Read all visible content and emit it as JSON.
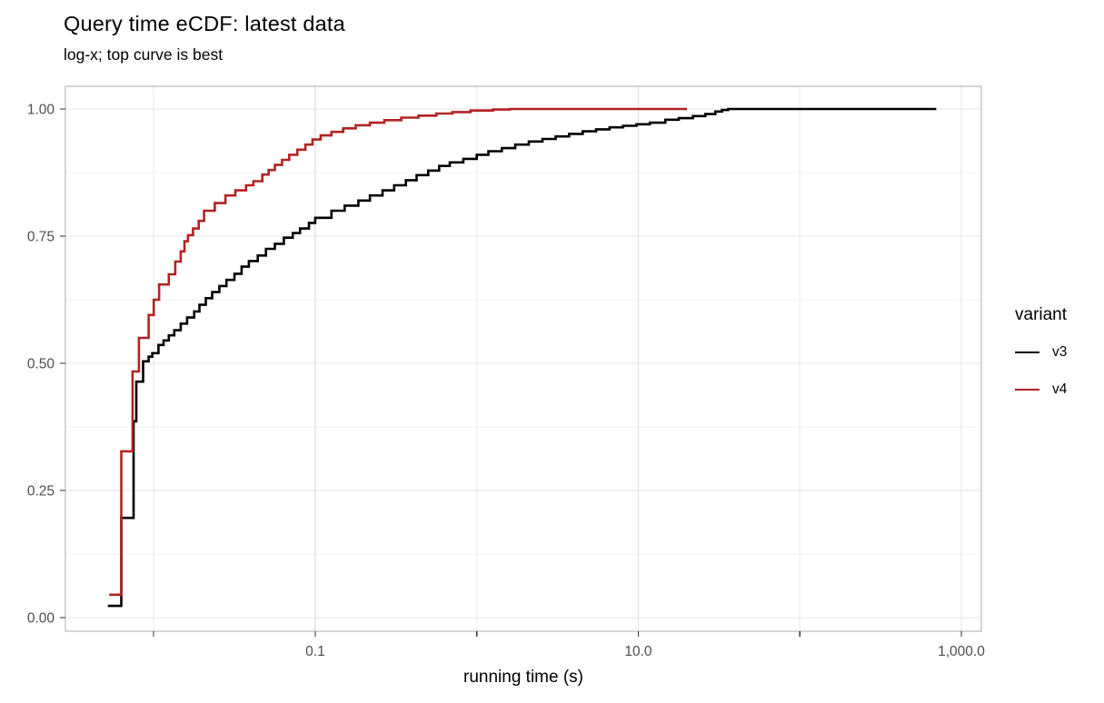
{
  "title": "Query time eCDF: latest data",
  "subtitle": "log-x; top curve is best",
  "chart_data": {
    "type": "line",
    "subtype": "ecdf-step",
    "title": "Query time eCDF: latest data",
    "subtitle": "log-x; top curve is best",
    "xlabel": "running time (s)",
    "ylabel": "",
    "x_scale": "log10",
    "xlim": [
      0.00284,
      1330
    ],
    "ylim": [
      0,
      1
    ],
    "grid": "on",
    "x_major_ticks": [
      {
        "value": 0.1,
        "label": "0.1"
      },
      {
        "value": 10,
        "label": "10.0"
      },
      {
        "value": 1000,
        "label": "1,000.0"
      }
    ],
    "x_minor_ticks": [
      0.01,
      1,
      100
    ],
    "y_major_ticks": [
      {
        "value": 0.0,
        "label": "0.00"
      },
      {
        "value": 0.25,
        "label": "0.25"
      },
      {
        "value": 0.5,
        "label": "0.50"
      },
      {
        "value": 0.75,
        "label": "0.75"
      },
      {
        "value": 1.0,
        "label": "1.00"
      }
    ],
    "y_minor_ticks": [
      0.125,
      0.375,
      0.625,
      0.875
    ],
    "legend": {
      "title": "variant",
      "position": "right"
    },
    "colors": {
      "grid_major": "#e4e4e4",
      "grid_minor": "#f1f1f1",
      "panel_border": "#adadad",
      "tick_mark": "#333333",
      "tick_label": "#4d4d4d"
    },
    "series": [
      {
        "name": "v3",
        "color": "#000000",
        "points": [
          [
            0.0052,
            0.023
          ],
          [
            0.0063,
            0.196
          ],
          [
            0.0075,
            0.386
          ],
          [
            0.0078,
            0.464
          ],
          [
            0.0086,
            0.504
          ],
          [
            0.0093,
            0.513
          ],
          [
            0.0098,
            0.52
          ],
          [
            0.0107,
            0.536
          ],
          [
            0.0115,
            0.545
          ],
          [
            0.0124,
            0.555
          ],
          [
            0.0134,
            0.565
          ],
          [
            0.0147,
            0.578
          ],
          [
            0.0161,
            0.59
          ],
          [
            0.0178,
            0.602
          ],
          [
            0.0192,
            0.615
          ],
          [
            0.021,
            0.628
          ],
          [
            0.023,
            0.64
          ],
          [
            0.0255,
            0.652
          ],
          [
            0.0282,
            0.664
          ],
          [
            0.0316,
            0.676
          ],
          [
            0.035,
            0.69
          ],
          [
            0.0388,
            0.701
          ],
          [
            0.0441,
            0.712
          ],
          [
            0.0495,
            0.725
          ],
          [
            0.0562,
            0.735
          ],
          [
            0.0639,
            0.747
          ],
          [
            0.0726,
            0.756
          ],
          [
            0.0805,
            0.765
          ],
          [
            0.0914,
            0.776
          ],
          [
            0.1,
            0.786
          ],
          [
            0.126,
            0.8
          ],
          [
            0.152,
            0.81
          ],
          [
            0.185,
            0.82
          ],
          [
            0.218,
            0.83
          ],
          [
            0.261,
            0.84
          ],
          [
            0.308,
            0.85
          ],
          [
            0.364,
            0.86
          ],
          [
            0.424,
            0.87
          ],
          [
            0.501,
            0.879
          ],
          [
            0.585,
            0.888
          ],
          [
            0.681,
            0.895
          ],
          [
            0.826,
            0.902
          ],
          [
            1.0,
            0.91
          ],
          [
            1.18,
            0.917
          ],
          [
            1.43,
            0.923
          ],
          [
            1.73,
            0.93
          ],
          [
            2.1,
            0.936
          ],
          [
            2.55,
            0.941
          ],
          [
            3.08,
            0.946
          ],
          [
            3.73,
            0.951
          ],
          [
            4.53,
            0.956
          ],
          [
            5.48,
            0.96
          ],
          [
            6.64,
            0.964
          ],
          [
            8.05,
            0.967
          ],
          [
            9.75,
            0.97
          ],
          [
            11.8,
            0.973
          ],
          [
            14.7,
            0.979
          ],
          [
            17.8,
            0.982
          ],
          [
            21.8,
            0.986
          ],
          [
            26,
            0.99
          ],
          [
            30,
            0.995
          ],
          [
            33,
            0.998
          ],
          [
            36,
            1.0
          ],
          [
            700,
            1.0
          ]
        ]
      },
      {
        "name": "v4",
        "color": "#b22222",
        "points": [
          [
            0.0053,
            0.045
          ],
          [
            0.0063,
            0.327
          ],
          [
            0.0074,
            0.484
          ],
          [
            0.0081,
            0.55
          ],
          [
            0.0093,
            0.595
          ],
          [
            0.01,
            0.625
          ],
          [
            0.0108,
            0.655
          ],
          [
            0.0124,
            0.675
          ],
          [
            0.0136,
            0.7
          ],
          [
            0.0147,
            0.72
          ],
          [
            0.0155,
            0.74
          ],
          [
            0.0163,
            0.752
          ],
          [
            0.0175,
            0.765
          ],
          [
            0.019,
            0.78
          ],
          [
            0.0205,
            0.8
          ],
          [
            0.0239,
            0.815
          ],
          [
            0.0278,
            0.83
          ],
          [
            0.032,
            0.84
          ],
          [
            0.0373,
            0.85
          ],
          [
            0.0414,
            0.858
          ],
          [
            0.047,
            0.871
          ],
          [
            0.0514,
            0.88
          ],
          [
            0.0562,
            0.89
          ],
          [
            0.0623,
            0.9
          ],
          [
            0.069,
            0.91
          ],
          [
            0.0774,
            0.92
          ],
          [
            0.0869,
            0.93
          ],
          [
            0.0962,
            0.94
          ],
          [
            0.108,
            0.948
          ],
          [
            0.126,
            0.955
          ],
          [
            0.149,
            0.962
          ],
          [
            0.178,
            0.968
          ],
          [
            0.218,
            0.973
          ],
          [
            0.268,
            0.978
          ],
          [
            0.341,
            0.983
          ],
          [
            0.436,
            0.987
          ],
          [
            0.562,
            0.991
          ],
          [
            0.708,
            0.994
          ],
          [
            0.914,
            0.997
          ],
          [
            1.26,
            0.999
          ],
          [
            1.6,
            1.0
          ],
          [
            20,
            1.0
          ]
        ]
      }
    ]
  }
}
